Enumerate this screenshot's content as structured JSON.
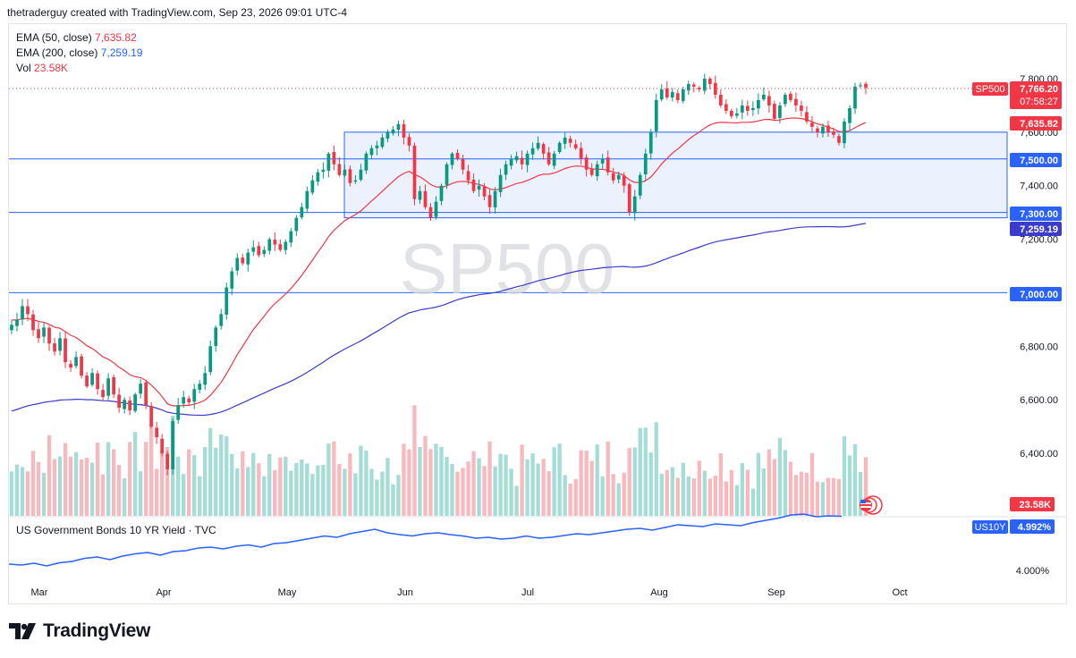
{
  "header": {
    "attribution": "thetraderguy created with TradingView.com, Sep 23, 2026 09:01 UTC-4"
  },
  "legend": {
    "ema50_name": "EMA (50, close)",
    "ema50_value": "7,635.82",
    "ema200_name": "EMA (200, close)",
    "ema200_value": "7,259.19",
    "vol_name": "Vol",
    "vol_value": "23.58K"
  },
  "watermark": "SP500",
  "symbol_tag": "SP500",
  "last_price": "7,766.20",
  "countdown": "07:58:27",
  "ema50_tag": "7,635.82",
  "ema200_tag": "7,259.19",
  "vol_tag": "23.58K",
  "level_tags": [
    "7,500.00",
    "7,300.00",
    "7,000.00"
  ],
  "price_axis_labels": [
    "7,800.00",
    "7,600.00",
    "7,400.00",
    "7,200.00",
    "6,800.00",
    "6,600.00",
    "6,400.00"
  ],
  "time_axis_labels": [
    "Mar",
    "Apr",
    "May",
    "Jun",
    "Jul",
    "Aug",
    "Sep",
    "Oct"
  ],
  "lower_pane": {
    "title": "US Government Bonds 10 YR Yield · TVC",
    "symbol_tag": "US10Y",
    "value_tag": "4.992%",
    "axis_label": "4.000%"
  },
  "footer": {
    "brand": "TradingView"
  },
  "colors": {
    "up": "#089981",
    "down": "#f23645",
    "ema50": "#f23645",
    "ema200": "#3c3ccc",
    "levels": "#2962ff",
    "range_box": "#e8eefd",
    "vol_up": "#a4ddd6",
    "vol_down": "#f7b9bd",
    "yield": "#2962ff"
  },
  "chart_data": {
    "type": "candlestick",
    "y_range": [
      6250,
      7860
    ],
    "levels": [
      7500,
      7300,
      7000
    ],
    "range_box": {
      "from": "2026-05-18",
      "to": "end",
      "low": 7280,
      "high": 7600
    },
    "last_close": 7766.2,
    "ema50_last": 7635.82,
    "ema200_last": 7259.19,
    "closes": [
      6880,
      6900,
      6950,
      6920,
      6860,
      6830,
      6870,
      6810,
      6780,
      6830,
      6740,
      6720,
      6760,
      6690,
      6650,
      6700,
      6640,
      6610,
      6680,
      6620,
      6570,
      6600,
      6560,
      6620,
      6660,
      6580,
      6500,
      6460,
      6400,
      6340,
      6520,
      6580,
      6610,
      6590,
      6640,
      6660,
      6700,
      6800,
      6870,
      6920,
      7020,
      7080,
      7130,
      7110,
      7150,
      7170,
      7140,
      7160,
      7200,
      7180,
      7160,
      7190,
      7230,
      7280,
      7320,
      7380,
      7420,
      7450,
      7460,
      7520,
      7480,
      7440,
      7460,
      7410,
      7420,
      7460,
      7520,
      7540,
      7550,
      7580,
      7600,
      7610,
      7630,
      7580,
      7550,
      7350,
      7380,
      7320,
      7280,
      7340,
      7400,
      7480,
      7520,
      7500,
      7460,
      7420,
      7380,
      7400,
      7360,
      7320,
      7380,
      7440,
      7480,
      7500,
      7510,
      7480,
      7520,
      7540,
      7560,
      7520,
      7480,
      7520,
      7560,
      7580,
      7560,
      7540,
      7500,
      7460,
      7440,
      7480,
      7500,
      7450,
      7420,
      7440,
      7400,
      7300,
      7360,
      7440,
      7520,
      7600,
      7720,
      7760,
      7730,
      7750,
      7720,
      7760,
      7780,
      7770,
      7760,
      7800,
      7780,
      7740,
      7700,
      7680,
      7660,
      7670,
      7700,
      7680,
      7690,
      7720,
      7740,
      7700,
      7650,
      7700,
      7740,
      7720,
      7700,
      7680,
      7640,
      7620,
      7600,
      7620,
      7600,
      7590,
      7560,
      7640,
      7690,
      7770,
      7775,
      7766.2
    ],
    "yield_range": "3.9% to 5.05%",
    "time_axis": [
      "Mar",
      "Apr",
      "May",
      "Jun",
      "Jul",
      "Aug",
      "Sep",
      "Oct"
    ]
  }
}
